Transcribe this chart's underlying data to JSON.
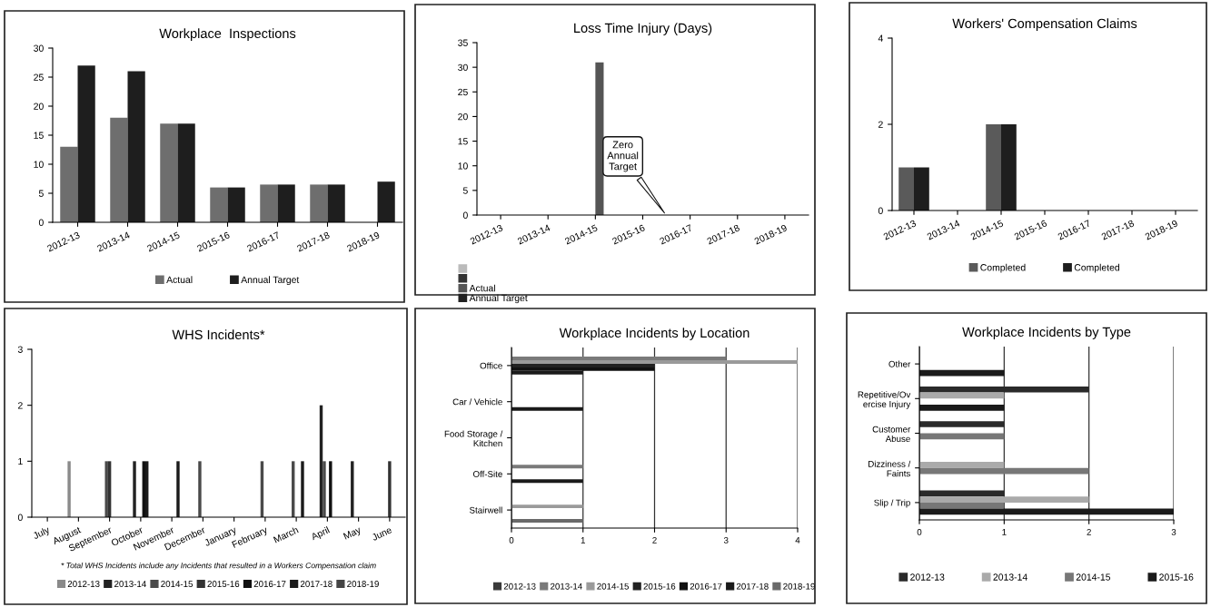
{
  "chart_data": [
    {
      "type": "bar",
      "title": "Workplace  Inspections",
      "categories": [
        "2012-13",
        "2013-14",
        "2014-15",
        "2015-16",
        "2016-17",
        "2017-18",
        "2018-19"
      ],
      "series": [
        {
          "name": "Actual",
          "color": "#6e6e6e",
          "values": [
            13,
            18,
            17,
            6,
            6.5,
            6.5,
            null
          ]
        },
        {
          "name": "Annual Target",
          "color": "#1e1e1e",
          "values": [
            27,
            26,
            17,
            6,
            6.5,
            6.5,
            7
          ]
        }
      ],
      "ylim": [
        0,
        30
      ],
      "yticks": [
        0,
        5,
        10,
        15,
        20,
        25,
        30
      ],
      "grid": false,
      "legend": "bottom"
    },
    {
      "type": "bar",
      "title": "Loss Time Injury (Days)",
      "categories": [
        "2012-13",
        "2013-14",
        "2014-15",
        "2015-16",
        "2016-17",
        "2017-18",
        "2018-19"
      ],
      "series": [
        {
          "color": "#bbbbbb",
          "values": [
            null,
            null,
            null,
            null,
            null,
            null,
            null
          ]
        },
        {
          "color": "#333333",
          "values": [
            null,
            null,
            null,
            null,
            null,
            null,
            null
          ]
        },
        {
          "name": "Actual",
          "color": "#555555",
          "values": [
            null,
            null,
            31,
            null,
            null,
            null,
            null
          ]
        },
        {
          "name": "Annual Target",
          "color": "#222222",
          "values": [
            null,
            null,
            null,
            null,
            null,
            null,
            null
          ]
        }
      ],
      "annotations": [
        "Zero\nAnnual\nTarget"
      ],
      "ylim": [
        0,
        35
      ],
      "yticks": [
        0,
        5,
        10,
        15,
        20,
        25,
        30,
        35
      ],
      "grid": false,
      "legend": "bottom left"
    },
    {
      "type": "bar",
      "title": "Workers' Compensation Claims",
      "categories": [
        "2012-13",
        "2013-14",
        "2014-15",
        "2015-16",
        "2016-17",
        "2017-18",
        "2018-19"
      ],
      "series": [
        {
          "name": "Completed",
          "color": "#5a5a5a",
          "values": [
            1,
            null,
            2,
            null,
            null,
            null,
            null
          ]
        },
        {
          "name": "Completed",
          "color": "#1e1e1e",
          "values": [
            1,
            null,
            2,
            null,
            null,
            null,
            null
          ]
        }
      ],
      "ylim": [
        0,
        4
      ],
      "yticks": [
        0,
        2,
        4
      ],
      "grid": false,
      "legend": "bottom"
    },
    {
      "type": "bar",
      "title": "WHS Incidents*",
      "categories": [
        "July",
        "August",
        "September",
        "October",
        "November",
        "December",
        "January",
        "February",
        "March",
        "April",
        "May",
        "June"
      ],
      "series": [
        {
          "name": "2012-13",
          "color": "#8a8a8a",
          "values": [
            null,
            1,
            null,
            null,
            null,
            null,
            null,
            null,
            null,
            null,
            null,
            null
          ]
        },
        {
          "name": "2013-14",
          "color": "#222222",
          "values": [
            null,
            null,
            null,
            1,
            null,
            null,
            null,
            null,
            null,
            2,
            1,
            null
          ]
        },
        {
          "name": "2014-15",
          "color": "#4a4a4a",
          "values": [
            null,
            null,
            1,
            null,
            null,
            1,
            null,
            1,
            1,
            1,
            null,
            null
          ]
        },
        {
          "name": "2015-16",
          "color": "#333333",
          "values": [
            null,
            null,
            1,
            null,
            null,
            null,
            null,
            null,
            null,
            null,
            null,
            1
          ]
        },
        {
          "name": "2016-17",
          "color": "#111111",
          "values": [
            null,
            null,
            null,
            1,
            null,
            null,
            null,
            null,
            null,
            1,
            null,
            null
          ]
        },
        {
          "name": "2017-18",
          "color": "#1a1a1a",
          "values": [
            null,
            null,
            null,
            1,
            1,
            null,
            null,
            null,
            1,
            null,
            null,
            null
          ]
        },
        {
          "name": "2018-19",
          "color": "#444444",
          "values": [
            null,
            null,
            null,
            null,
            null,
            null,
            null,
            null,
            null,
            null,
            null,
            null
          ]
        }
      ],
      "annotations": [
        "* Total WHS Incidents include any Incidents that resulted in a Workers Compensation claim"
      ],
      "ylim": [
        0,
        3
      ],
      "yticks": [
        0,
        1,
        2,
        3
      ],
      "grid": false,
      "legend": "bottom"
    },
    {
      "type": "bar",
      "orientation": "horizontal",
      "title": "Workplace Incidents by Location",
      "categories": [
        "Office",
        "Car / Vehicle",
        "Food Storage /\nKitchen",
        "Off-Site",
        "Stairwell"
      ],
      "series": [
        {
          "name": "2012-13",
          "color": "#3a3a3a",
          "values": [
            null,
            null,
            null,
            null,
            null
          ]
        },
        {
          "name": "2013-14",
          "color": "#7a7a7a",
          "values": [
            3,
            null,
            null,
            1,
            null
          ]
        },
        {
          "name": "2014-15",
          "color": "#9a9a9a",
          "values": [
            4,
            null,
            null,
            null,
            1
          ]
        },
        {
          "name": "2015-16",
          "color": "#222222",
          "values": [
            2,
            null,
            null,
            null,
            null
          ]
        },
        {
          "name": "2016-17",
          "color": "#111111",
          "values": [
            2,
            null,
            null,
            null,
            null
          ]
        },
        {
          "name": "2017-18",
          "color": "#1a1a1a",
          "values": [
            1,
            1,
            null,
            1,
            null
          ]
        },
        {
          "name": "2018-19",
          "color": "#6a6a6a",
          "values": [
            null,
            null,
            null,
            null,
            1
          ]
        }
      ],
      "xlim": [
        0,
        4
      ],
      "xticks": [
        0,
        1,
        2,
        3,
        4
      ],
      "grid": "x",
      "legend": "bottom"
    },
    {
      "type": "bar",
      "orientation": "horizontal",
      "title": "Workplace Incidents by Type",
      "categories": [
        "Other",
        "Repetitive/Ov\nercise Injury",
        "Customer\nAbuse",
        "Dizziness /\nFaints",
        "Slip / Trip"
      ],
      "series": [
        {
          "name": "2012-13",
          "color": "#2a2a2a",
          "values": [
            null,
            2,
            1,
            null,
            1
          ]
        },
        {
          "name": "2013-14",
          "color": "#aaaaaa",
          "values": [
            null,
            1,
            null,
            1,
            2
          ]
        },
        {
          "name": "2014-15",
          "color": "#777777",
          "values": [
            null,
            null,
            1,
            2,
            1
          ]
        },
        {
          "name": "2015-16",
          "color": "#1a1a1a",
          "values": [
            1,
            1,
            null,
            null,
            3
          ]
        }
      ],
      "xlim": [
        0,
        3
      ],
      "xticks": [
        0,
        1,
        2,
        3
      ],
      "grid": "x",
      "legend": "bottom"
    }
  ]
}
